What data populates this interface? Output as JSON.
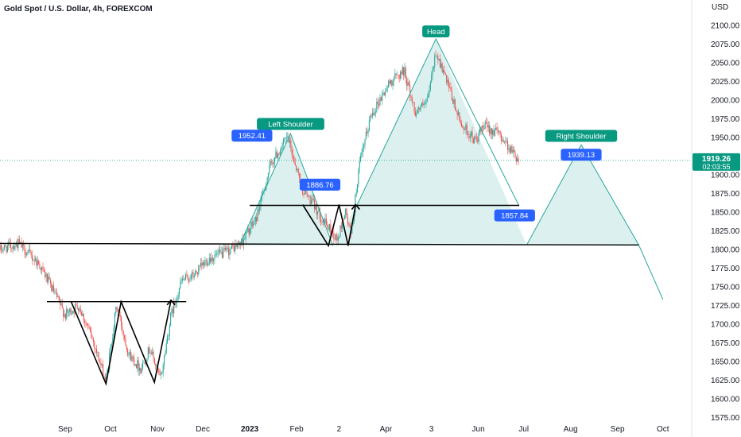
{
  "header": {
    "title": "Gold Spot / U.S. Dollar, 4h, FOREXCOM"
  },
  "colors": {
    "up": "#26a69a",
    "down": "#ef5350",
    "pattern_line": "#26a69a",
    "pattern_fill": "#26a69a",
    "label_green": "#089981",
    "label_blue": "#2962ff",
    "price_badge": "#089981",
    "neckline": "#000000",
    "axis_text": "#131722"
  },
  "chart_data": {
    "type": "candlestick",
    "title": "Gold Spot / U.S. Dollar, 4h, FOREXCOM",
    "currency_label": "USD",
    "ylim": [
      1570,
      2115
    ],
    "y_ticks": [
      1575,
      1600,
      1625,
      1650,
      1675,
      1700,
      1725,
      1750,
      1775,
      1800,
      1825,
      1850,
      1875,
      1900,
      1925,
      1950,
      1975,
      2000,
      2025,
      2050,
      2075,
      2100
    ],
    "y_tick_labels": [
      "1575.00",
      "1600.00",
      "1625.00",
      "1650.00",
      "1675.00",
      "1700.00",
      "1725.00",
      "1750.00",
      "1775.00",
      "1800.00",
      "1825.00",
      "1850.00",
      "1875.00",
      "1900.00",
      "1925.00",
      "1950.00",
      "1975.00",
      "2000.00",
      "2025.00",
      "2050.00",
      "2075.00",
      "2100.00"
    ],
    "x_range": [
      "2022-07-20",
      "2023-10-20"
    ],
    "x_ticks": [
      {
        "date": "2022-09-01",
        "label": "Sep"
      },
      {
        "date": "2022-10-01",
        "label": "Oct"
      },
      {
        "date": "2022-11-01",
        "label": "Nov"
      },
      {
        "date": "2022-12-01",
        "label": "Dec"
      },
      {
        "date": "2023-01-01",
        "label": "2023"
      },
      {
        "date": "2023-02-01",
        "label": "Feb"
      },
      {
        "date": "2023-03-01",
        "label": "2"
      },
      {
        "date": "2023-04-01",
        "label": "Apr"
      },
      {
        "date": "2023-05-01",
        "label": "3"
      },
      {
        "date": "2023-06-01",
        "label": "Jun"
      },
      {
        "date": "2023-07-01",
        "label": "Jul"
      },
      {
        "date": "2023-08-01",
        "label": "Aug"
      },
      {
        "date": "2023-09-01",
        "label": "Sep"
      },
      {
        "date": "2023-10-01",
        "label": "Oct"
      }
    ],
    "price_path": [
      [
        "2022-07-20",
        1800
      ],
      [
        "2022-08-01",
        1808
      ],
      [
        "2022-08-15",
        1780
      ],
      [
        "2022-08-24",
        1745
      ],
      [
        "2022-09-01",
        1712
      ],
      [
        "2022-09-10",
        1725
      ],
      [
        "2022-09-20",
        1675
      ],
      [
        "2022-09-28",
        1622
      ],
      [
        "2022-10-05",
        1725
      ],
      [
        "2022-10-13",
        1660
      ],
      [
        "2022-10-21",
        1640
      ],
      [
        "2022-10-27",
        1668
      ],
      [
        "2022-11-03",
        1625
      ],
      [
        "2022-11-10",
        1712
      ],
      [
        "2022-11-17",
        1758
      ],
      [
        "2022-11-25",
        1765
      ],
      [
        "2022-12-05",
        1788
      ],
      [
        "2022-12-15",
        1795
      ],
      [
        "2022-12-26",
        1808
      ],
      [
        "2023-01-05",
        1840
      ],
      [
        "2023-01-15",
        1915
      ],
      [
        "2023-01-26",
        1950
      ],
      [
        "2023-02-05",
        1880
      ],
      [
        "2023-02-12",
        1860
      ],
      [
        "2023-02-20",
        1835
      ],
      [
        "2023-02-28",
        1812
      ],
      [
        "2023-03-05",
        1852
      ],
      [
        "2023-03-09",
        1818
      ],
      [
        "2023-03-14",
        1908
      ],
      [
        "2023-03-22",
        1980
      ],
      [
        "2023-04-04",
        2025
      ],
      [
        "2023-04-13",
        2040
      ],
      [
        "2023-04-20",
        1985
      ],
      [
        "2023-04-28",
        1995
      ],
      [
        "2023-05-04",
        2065
      ],
      [
        "2023-05-11",
        2025
      ],
      [
        "2023-05-20",
        1970
      ],
      [
        "2023-05-30",
        1945
      ],
      [
        "2023-06-05",
        1965
      ],
      [
        "2023-06-15",
        1955
      ],
      [
        "2023-06-22",
        1935
      ],
      [
        "2023-06-28",
        1919.26
      ]
    ],
    "current_price": 1919.26,
    "current_price_label": "1919.26",
    "countdown": "02:03:55",
    "annotations": [
      {
        "text": "Left Shoulder",
        "date": "2023-01-28",
        "price": 1958,
        "color": "green"
      },
      {
        "text": "Head",
        "date": "2023-05-04",
        "price": 2082,
        "color": "green"
      },
      {
        "text": "Right Shoulder",
        "date": "2023-08-08",
        "price": 1942,
        "color": "green"
      },
      {
        "text": "1952.41",
        "date": "2023-01-18",
        "price": 1952.41,
        "color": "blue"
      },
      {
        "text": "1886.76",
        "date": "2023-03-04",
        "price": 1886.76,
        "color": "blue"
      },
      {
        "text": "1857.84",
        "date": "2023-06-25",
        "price": 1857.84,
        "color": "blue"
      },
      {
        "text": "1939.13",
        "date": "2023-08-08",
        "price": 1939.13,
        "color": "blue"
      }
    ],
    "pattern": {
      "triangles": [
        [
          [
            "2022-12-25",
            1805
          ],
          [
            "2023-01-28",
            1955
          ],
          [
            "2023-02-25",
            1805
          ]
        ],
        [
          [
            "2023-03-13",
            1860
          ],
          [
            "2023-05-04",
            2082
          ],
          [
            "2023-06-28",
            1858
          ]
        ],
        [
          [
            "2023-07-03",
            1806
          ],
          [
            "2023-08-08",
            1940
          ],
          [
            "2023-09-15",
            1806
          ]
        ]
      ],
      "hs_area": [
        [
          "2022-12-25",
          1805
        ],
        [
          "2023-01-28",
          1955
        ],
        [
          "2023-02-25",
          1805
        ],
        [
          "2023-03-13",
          1860
        ],
        [
          "2023-05-04",
          2082
        ],
        [
          "2023-07-03",
          1806
        ],
        [
          "2023-08-08",
          1940
        ],
        [
          "2023-09-15",
          1806
        ]
      ],
      "extension": [
        [
          "2023-09-15",
          1806
        ],
        [
          "2023-10-01",
          1733
        ]
      ],
      "neckline_upper": [
        [
          "2023-01-01",
          1859
        ],
        [
          "2023-06-28",
          1859
        ]
      ],
      "neckline_lower": [
        [
          "2022-07-20",
          1808
        ],
        [
          "2023-09-15",
          1806
        ]
      ],
      "inv_neckline": [
        [
          "2022-08-20",
          1730
        ],
        [
          "2022-11-20",
          1730
        ]
      ],
      "w_pattern_1": [
        [
          "2022-09-05",
          1730
        ],
        [
          "2022-09-28",
          1620
        ],
        [
          "2022-10-08",
          1730
        ],
        [
          "2022-10-30",
          1622
        ],
        [
          "2022-11-10",
          1732
        ]
      ],
      "w_pattern_2": [
        [
          "2023-02-05",
          1860
        ],
        [
          "2023-02-22",
          1805
        ],
        [
          "2023-03-01",
          1860
        ],
        [
          "2023-03-07",
          1805
        ],
        [
          "2023-03-12",
          1860
        ]
      ]
    }
  }
}
